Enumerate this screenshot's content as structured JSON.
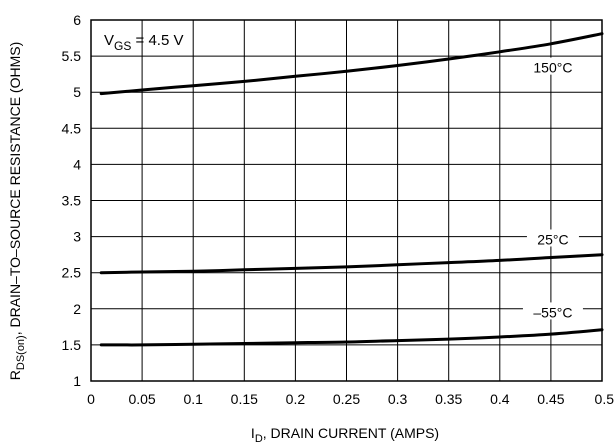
{
  "chart_data": {
    "type": "line",
    "title": "",
    "xlabel": "I_D, DRAIN CURRENT (AMPS)",
    "xlabel_parts": {
      "main": "I",
      "sub": "D",
      "rest": ", DRAIN CURRENT (AMPS)"
    },
    "ylabel": "R_DS(on), DRAIN-TO-SOURCE RESISTANCE (OHMS)",
    "ylabel_parts": {
      "main": "R",
      "sub": "DS(on)",
      "rest": ", DRAIN–TO–SOURCE RESISTANCE (OHMS)"
    },
    "xlim": [
      0,
      0.5
    ],
    "ylim": [
      1,
      6
    ],
    "x_ticks": [
      0,
      0.05,
      0.1,
      0.15,
      0.2,
      0.25,
      0.3,
      0.35,
      0.4,
      0.45,
      0.5
    ],
    "x_tick_labels": [
      "0",
      "0.05",
      "0.1",
      "0.15",
      "0.2",
      "0.25",
      "0.3",
      "0.35",
      "0.4",
      "0.45",
      "0.5"
    ],
    "y_ticks": [
      1,
      1.5,
      2,
      2.5,
      3,
      3.5,
      4,
      4.5,
      5,
      5.5,
      6
    ],
    "y_tick_labels": [
      "1",
      "1.5",
      "2",
      "2.5",
      "3",
      "3.5",
      "4",
      "4.5",
      "5",
      "5.5",
      "6"
    ],
    "grid": true,
    "annotation": {
      "main": "V",
      "sub": "GS",
      "rest": " = 4.5  V"
    },
    "series": [
      {
        "name": "150°C",
        "x": [
          0.01,
          0.05,
          0.1,
          0.15,
          0.2,
          0.25,
          0.3,
          0.35,
          0.4,
          0.45,
          0.5
        ],
        "y": [
          4.98,
          5.03,
          5.09,
          5.15,
          5.22,
          5.29,
          5.37,
          5.46,
          5.56,
          5.67,
          5.81
        ]
      },
      {
        "name": "25°C",
        "x": [
          0.01,
          0.05,
          0.1,
          0.15,
          0.2,
          0.25,
          0.3,
          0.35,
          0.4,
          0.45,
          0.5
        ],
        "y": [
          2.5,
          2.51,
          2.52,
          2.54,
          2.56,
          2.58,
          2.61,
          2.64,
          2.67,
          2.71,
          2.75
        ]
      },
      {
        "name": "–55°C",
        "x": [
          0.01,
          0.05,
          0.1,
          0.15,
          0.2,
          0.25,
          0.3,
          0.35,
          0.4,
          0.45,
          0.5
        ],
        "y": [
          1.5,
          1.5,
          1.51,
          1.52,
          1.53,
          1.54,
          1.56,
          1.58,
          1.61,
          1.65,
          1.71
        ]
      }
    ]
  }
}
